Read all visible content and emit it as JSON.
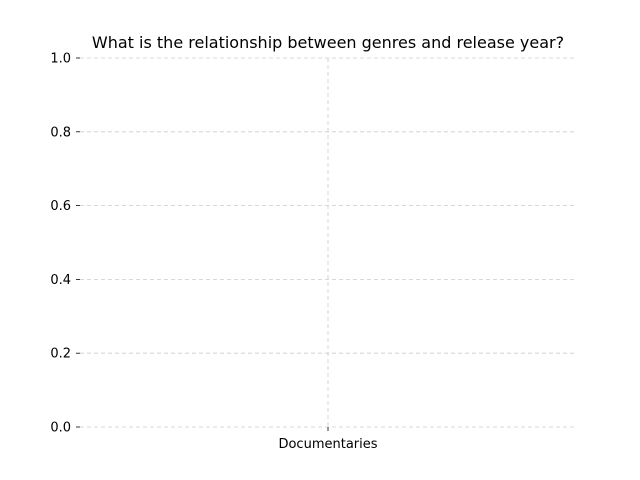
{
  "chart_data": {
    "type": "scatter",
    "title": "What is the relationship between genres and release year?",
    "xlabel": "",
    "ylabel": "",
    "categories": [
      "Documentaries"
    ],
    "series": [
      {
        "values": []
      }
    ],
    "y_ticks": [
      "0.0",
      "0.2",
      "0.4",
      "0.6",
      "0.8",
      "1.0"
    ],
    "ylim": [
      0,
      1
    ],
    "grid": true,
    "grid_color": "#cccccc"
  }
}
